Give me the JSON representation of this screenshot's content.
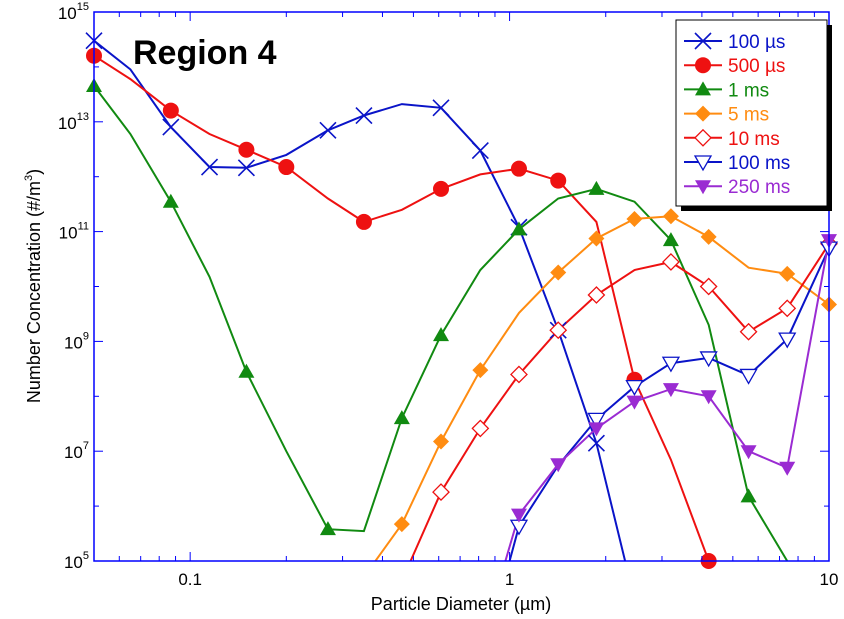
{
  "chart_data": {
    "type": "line",
    "title": "Region 4",
    "title_color": "#ee1690",
    "xlabel": "Particle Diameter (µm)",
    "ylabel": "Number Concentration (#/m",
    "ylabel_sup": "3",
    "ylabel_end": ")",
    "xscale": "log",
    "yscale": "log",
    "xlim": [
      0.05,
      10
    ],
    "ylim": [
      100000,
      1000000000000000.0
    ],
    "x_ticks": [
      {
        "value": 0.1,
        "label": "0.1"
      },
      {
        "value": 1,
        "label": "1"
      },
      {
        "value": 10,
        "label": "10"
      }
    ],
    "y_ticks": [
      {
        "value": 100000,
        "base": "10",
        "exp": "5"
      },
      {
        "value": 10000000,
        "base": "10",
        "exp": "7"
      },
      {
        "value": 1000000000,
        "base": "10",
        "exp": "9"
      },
      {
        "value": 100000000000,
        "base": "10",
        "exp": "11"
      },
      {
        "value": 10000000000000,
        "base": "10",
        "exp": "13"
      },
      {
        "value": 1000000000000000.0,
        "base": "10",
        "exp": "15"
      }
    ],
    "grid": false,
    "legend_position": "top-right",
    "series": [
      {
        "name": "100 µs",
        "color": "#0a14c8",
        "marker": "x",
        "points": [
          [
            0.05,
            300000000000000.0
          ],
          [
            0.065,
            90000000000000.0
          ],
          [
            0.087,
            8000000000000.0
          ],
          [
            0.115,
            1500000000000.0
          ],
          [
            0.15,
            1450000000000.0
          ],
          [
            0.2,
            2500000000000.0
          ],
          [
            0.27,
            7000000000000.0
          ],
          [
            0.35,
            13000000000000.0
          ],
          [
            0.46,
            21000000000000.0
          ],
          [
            0.61,
            18000000000000.0
          ],
          [
            0.81,
            3000000000000.0
          ],
          [
            1.07,
            120000000000.0
          ],
          [
            1.42,
            1600000000.0
          ],
          [
            1.87,
            14000000.0
          ],
          [
            2.3,
            100000.0
          ]
        ],
        "marker_points": [
          [
            0.05,
            300000000000000.0
          ],
          [
            0.087,
            8000000000000.0
          ],
          [
            0.115,
            1500000000000.0
          ],
          [
            0.15,
            1450000000000.0
          ],
          [
            0.27,
            7000000000000.0
          ],
          [
            0.35,
            13000000000000.0
          ],
          [
            0.61,
            18000000000000.0
          ],
          [
            0.81,
            3000000000000.0
          ],
          [
            1.07,
            120000000000.0
          ],
          [
            1.42,
            1600000000.0
          ],
          [
            1.87,
            14000000.0
          ]
        ]
      },
      {
        "name": "500 µs",
        "color": "#ee1111",
        "marker": "circle",
        "points": [
          [
            0.05,
            160000000000000.0
          ],
          [
            0.065,
            60000000000000.0
          ],
          [
            0.087,
            16000000000000.0
          ],
          [
            0.115,
            6000000000000.0
          ],
          [
            0.15,
            3100000000000.0
          ],
          [
            0.2,
            1500000000000.0
          ],
          [
            0.27,
            400000000000.0
          ],
          [
            0.35,
            150000000000.0
          ],
          [
            0.46,
            250000000000.0
          ],
          [
            0.61,
            600000000000.0
          ],
          [
            0.81,
            1100000000000.0
          ],
          [
            1.07,
            1400000000000.0
          ],
          [
            1.42,
            850000000000.0
          ],
          [
            1.87,
            150000000000.0
          ],
          [
            2.46,
            200000000.0
          ],
          [
            3.2,
            7000000.0
          ],
          [
            4.2,
            100000.0
          ]
        ],
        "marker_points": [
          [
            0.05,
            160000000000000.0
          ],
          [
            0.087,
            16000000000000.0
          ],
          [
            0.15,
            3100000000000.0
          ],
          [
            0.2,
            1500000000000.0
          ],
          [
            0.35,
            150000000000.0
          ],
          [
            0.61,
            600000000000.0
          ],
          [
            1.07,
            1400000000000.0
          ],
          [
            1.42,
            850000000000.0
          ],
          [
            2.46,
            200000000.0
          ],
          [
            4.2,
            100000.0
          ]
        ]
      },
      {
        "name": "1 ms",
        "color": "#118a11",
        "marker": "triangle-up",
        "points": [
          [
            0.05,
            45000000000000.0
          ],
          [
            0.065,
            6000000000000.0
          ],
          [
            0.087,
            350000000000.0
          ],
          [
            0.115,
            15000000000.0
          ],
          [
            0.15,
            280000000.0
          ],
          [
            0.2,
            10000000.0
          ],
          [
            0.27,
            380000.0
          ],
          [
            0.35,
            350000.0
          ],
          [
            0.46,
            40000000.0
          ],
          [
            0.61,
            1300000000.0
          ],
          [
            0.81,
            20000000000.0
          ],
          [
            1.07,
            110000000000.0
          ],
          [
            1.42,
            400000000000.0
          ],
          [
            1.87,
            600000000000.0
          ],
          [
            2.46,
            350000000000.0
          ],
          [
            3.2,
            70000000000.0
          ],
          [
            4.2,
            2000000000.0
          ],
          [
            5.6,
            1500000.0
          ],
          [
            7.4,
            100000.0
          ]
        ],
        "marker_points": [
          [
            0.05,
            45000000000000.0
          ],
          [
            0.087,
            350000000000.0
          ],
          [
            0.15,
            280000000.0
          ],
          [
            0.27,
            380000.0
          ],
          [
            0.46,
            40000000.0
          ],
          [
            0.61,
            1300000000.0
          ],
          [
            1.07,
            110000000000.0
          ],
          [
            1.87,
            600000000000.0
          ],
          [
            3.2,
            70000000000.0
          ],
          [
            5.6,
            1500000.0
          ]
        ]
      },
      {
        "name": "5 ms",
        "color": "#ff8c11",
        "marker": "diamond",
        "points": [
          [
            0.38,
            100000.0
          ],
          [
            0.46,
            470000.0
          ],
          [
            0.61,
            15000000.0
          ],
          [
            0.81,
            300000000.0
          ],
          [
            1.07,
            3300000000.0
          ],
          [
            1.42,
            18000000000.0
          ],
          [
            1.87,
            75000000000.0
          ],
          [
            2.46,
            170000000000.0
          ],
          [
            3.2,
            190000000000.0
          ],
          [
            4.2,
            80000000000.0
          ],
          [
            5.6,
            22000000000.0
          ],
          [
            7.4,
            17000000000.0
          ],
          [
            10,
            4700000000.0
          ]
        ],
        "marker_points": [
          [
            0.46,
            470000.0
          ],
          [
            0.61,
            15000000.0
          ],
          [
            0.81,
            300000000.0
          ],
          [
            1.42,
            18000000000.0
          ],
          [
            1.87,
            75000000000.0
          ],
          [
            2.46,
            170000000000.0
          ],
          [
            3.2,
            190000000000.0
          ],
          [
            4.2,
            80000000000.0
          ],
          [
            7.4,
            17000000000.0
          ],
          [
            10,
            4700000000.0
          ]
        ]
      },
      {
        "name": "10 ms",
        "color": "#ee1111",
        "marker": "diamond-open",
        "points": [
          [
            0.49,
            100000.0
          ],
          [
            0.61,
            1800000.0
          ],
          [
            0.81,
            26000000.0
          ],
          [
            1.07,
            250000000.0
          ],
          [
            1.42,
            1600000000.0
          ],
          [
            1.87,
            7000000000.0
          ],
          [
            2.46,
            20000000000.0
          ],
          [
            3.2,
            28000000000.0
          ],
          [
            4.2,
            10000000000.0
          ],
          [
            5.6,
            1500000000.0
          ],
          [
            7.4,
            4000000000.0
          ],
          [
            10,
            60000000000.0
          ]
        ],
        "marker_points": [
          [
            0.61,
            1800000.0
          ],
          [
            0.81,
            26000000.0
          ],
          [
            1.07,
            250000000.0
          ],
          [
            1.42,
            1600000000.0
          ],
          [
            1.87,
            7000000000.0
          ],
          [
            3.2,
            28000000000.0
          ],
          [
            4.2,
            10000000000.0
          ],
          [
            5.6,
            1500000000.0
          ],
          [
            7.4,
            4000000000.0
          ],
          [
            10,
            60000000000.0
          ]
        ]
      },
      {
        "name": "100 ms",
        "color": "#0a14c8",
        "marker": "triangle-down-open",
        "points": [
          [
            1,
            100000.0
          ],
          [
            1.07,
            430000.0
          ],
          [
            1.42,
            5500000.0
          ],
          [
            1.87,
            38000000.0
          ],
          [
            2.46,
            150000000.0
          ],
          [
            3.2,
            400000000.0
          ],
          [
            4.2,
            500000000.0
          ],
          [
            5.6,
            240000000.0
          ],
          [
            7.4,
            1100000000.0
          ],
          [
            10,
            50000000000.0
          ]
        ],
        "marker_points": [
          [
            1.07,
            430000.0
          ],
          [
            1.87,
            38000000.0
          ],
          [
            2.46,
            150000000.0
          ],
          [
            3.2,
            400000000.0
          ],
          [
            4.2,
            500000000.0
          ],
          [
            5.6,
            240000000.0
          ],
          [
            7.4,
            1100000000.0
          ],
          [
            10,
            50000000000.0
          ]
        ]
      },
      {
        "name": "250 ms",
        "color": "#9a2bd2",
        "marker": "triangle-down",
        "points": [
          [
            0.97,
            100000.0
          ],
          [
            1.07,
            700000.0
          ],
          [
            1.42,
            5800000.0
          ],
          [
            1.87,
            26000000.0
          ],
          [
            2.46,
            80000000.0
          ],
          [
            3.2,
            135000000.0
          ],
          [
            4.2,
            100000000.0
          ],
          [
            5.6,
            10000000.0
          ],
          [
            7.4,
            5000000.0
          ],
          [
            10,
            70000000000.0
          ]
        ],
        "marker_points": [
          [
            1.07,
            700000.0
          ],
          [
            1.42,
            5800000.0
          ],
          [
            1.87,
            26000000.0
          ],
          [
            2.46,
            80000000.0
          ],
          [
            3.2,
            135000000.0
          ],
          [
            4.2,
            100000000.0
          ],
          [
            5.6,
            10000000.0
          ],
          [
            7.4,
            5000000.0
          ],
          [
            10,
            70000000000.0
          ]
        ]
      }
    ]
  }
}
